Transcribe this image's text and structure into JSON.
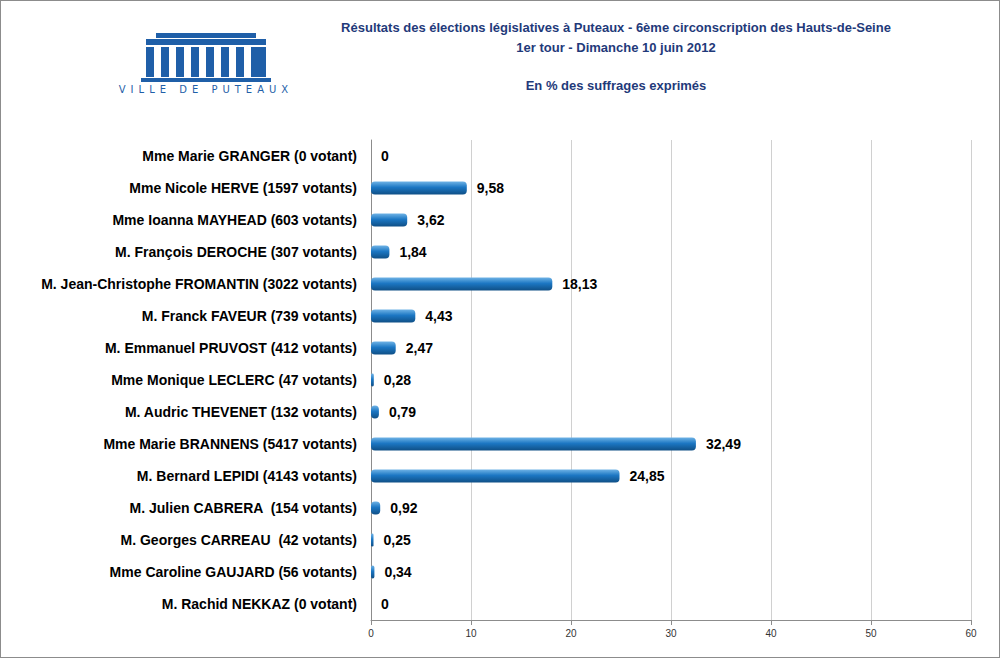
{
  "chart_data": {
    "type": "bar",
    "orientation": "horizontal",
    "title": "Résultats des élections législatives à Puteaux - 6ème circonscription des Hauts-de-Seine",
    "subtitle": [
      "1er tour - Dimanche 10 juin 2012",
      "En % des suffrages exprimés"
    ],
    "annotations": [
      "VILLE DE PUTEAUX"
    ],
    "categories": [
      "Mme Marie GRANGER (0 votant)",
      "Mme Nicole HERVE (1597 votants)",
      "Mme Ioanna MAYHEAD (603 votants)",
      "M. François DEROCHE (307 votants)",
      "M. Jean-Christophe FROMANTIN (3022 votants)",
      "M. Franck FAVEUR (739 votants)",
      "M. Emmanuel PRUVOST (412 votants)",
      "Mme Monique LECLERC (47 votants)",
      "M. Audric THEVENET (132 votants)",
      "Mme Marie BRANNENS (5417 votants)",
      "M. Bernard LEPIDI (4143 votants)",
      "M. Julien CABRERA  (154 votants)",
      "M. Georges CARREAU  (42 votants)",
      "Mme Caroline GAUJARD (56 votants)",
      "M. Rachid NEKKAZ (0 votant)"
    ],
    "values": [
      0,
      9.58,
      3.62,
      1.84,
      18.13,
      4.43,
      2.47,
      0.28,
      0.79,
      32.49,
      24.85,
      0.92,
      0.25,
      0.34,
      0
    ],
    "value_labels": [
      "0",
      "9,58",
      "3,62",
      "1,84",
      "18,13",
      "4,43",
      "2,47",
      "0,28",
      "0,79",
      "32,49",
      "24,85",
      "0,92",
      "0,25",
      "0,34",
      "0"
    ],
    "color": "#1c77c3",
    "xlim": [
      0,
      60
    ],
    "xticks": [
      0,
      10,
      20,
      30,
      40,
      50,
      60
    ],
    "grid": true,
    "data_labels": true
  }
}
